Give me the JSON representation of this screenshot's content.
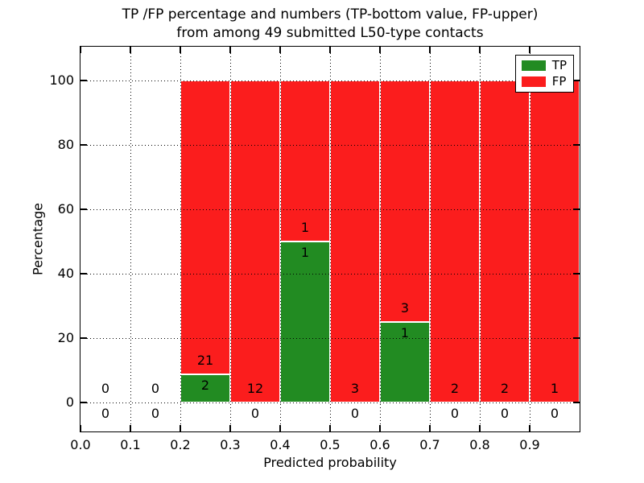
{
  "chart_data": {
    "type": "bar",
    "stacked": true,
    "title_line1": "TP /FP percentage and numbers (TP-bottom value, FP-upper)",
    "title_line2": "from among 49 submitted L50-type contacts",
    "xlabel": "Predicted probability",
    "ylabel": "Percentage",
    "total_contacts": 49,
    "x_tick_labels": [
      "0.0",
      "0.1",
      "0.2",
      "0.3",
      "0.4",
      "0.5",
      "0.6",
      "0.7",
      "0.8",
      "0.9"
    ],
    "y_tick_values": [
      0,
      20,
      40,
      60,
      80,
      100
    ],
    "xlim": [
      0.0,
      1.0
    ],
    "ylim": [
      -9,
      110.5
    ],
    "grid": "dotted black, drawn above bars",
    "legend": {
      "position": "upper right",
      "entries": [
        {
          "label": "TP",
          "color": "#228b22"
        },
        {
          "label": "FP",
          "color": "#fb1d1d"
        }
      ]
    },
    "colors": {
      "tp": "#228b22",
      "fp": "#fb1d1d",
      "bar_edge": "#ffffff",
      "grid": "#000000"
    },
    "bins": [
      {
        "x_start": 0.0,
        "x_end": 0.1,
        "tp_count": 0,
        "fp_count": 0,
        "tp_pct": 0,
        "fp_pct": 0
      },
      {
        "x_start": 0.1,
        "x_end": 0.2,
        "tp_count": 0,
        "fp_count": 0,
        "tp_pct": 0,
        "fp_pct": 0
      },
      {
        "x_start": 0.2,
        "x_end": 0.3,
        "tp_count": 2,
        "fp_count": 21,
        "tp_pct": 8.7,
        "fp_pct": 91.3
      },
      {
        "x_start": 0.3,
        "x_end": 0.4,
        "tp_count": 0,
        "fp_count": 12,
        "tp_pct": 0,
        "fp_pct": 100
      },
      {
        "x_start": 0.4,
        "x_end": 0.5,
        "tp_count": 1,
        "fp_count": 1,
        "tp_pct": 50,
        "fp_pct": 50
      },
      {
        "x_start": 0.5,
        "x_end": 0.6,
        "tp_count": 0,
        "fp_count": 3,
        "tp_pct": 0,
        "fp_pct": 100
      },
      {
        "x_start": 0.6,
        "x_end": 0.7,
        "tp_count": 1,
        "fp_count": 3,
        "tp_pct": 25,
        "fp_pct": 75
      },
      {
        "x_start": 0.7,
        "x_end": 0.8,
        "tp_count": 0,
        "fp_count": 2,
        "tp_pct": 0,
        "fp_pct": 100
      },
      {
        "x_start": 0.8,
        "x_end": 0.9,
        "tp_count": 0,
        "fp_count": 2,
        "tp_pct": 0,
        "fp_pct": 100
      },
      {
        "x_start": 0.9,
        "x_end": 1.0,
        "tp_count": 0,
        "fp_count": 1,
        "tp_pct": 0,
        "fp_pct": 100
      }
    ]
  }
}
